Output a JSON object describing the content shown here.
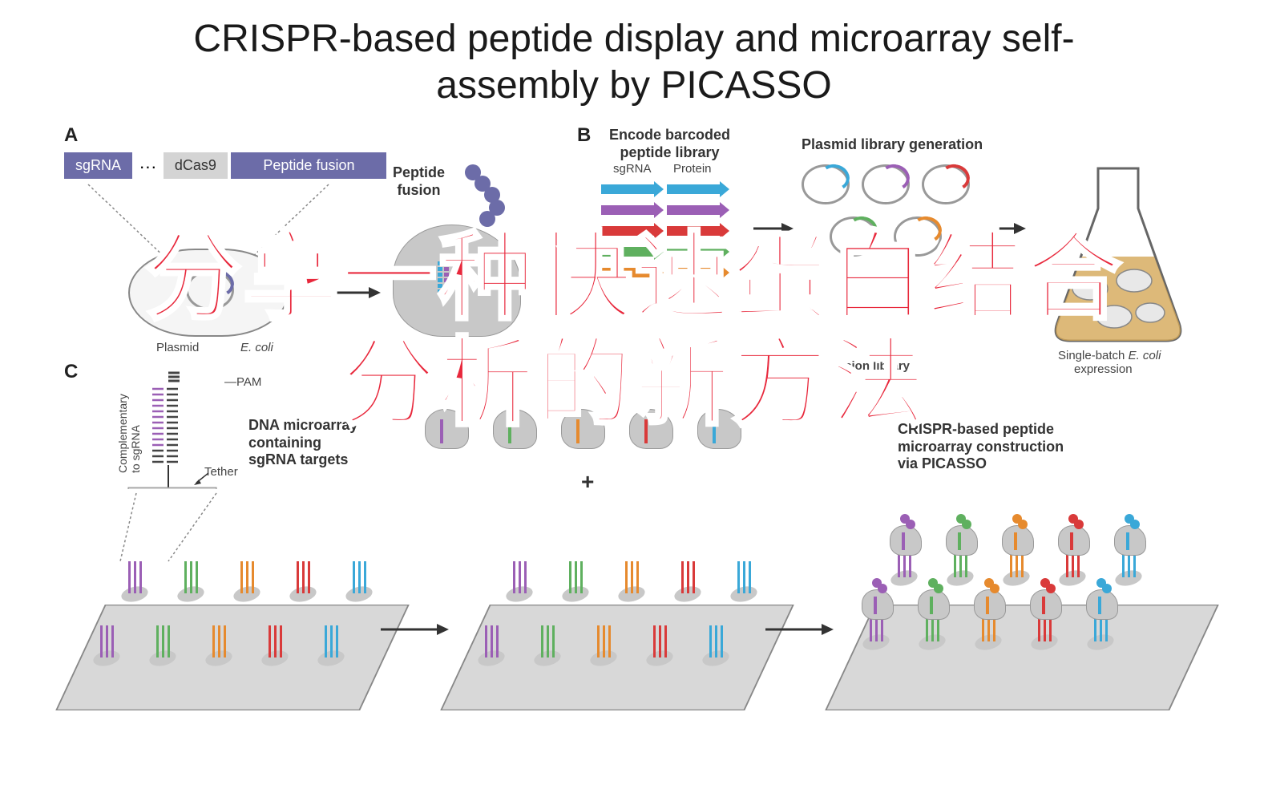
{
  "title_line1": "CRISPR-based peptide display and microarray self-",
  "title_line2": "assembly by PICASSO",
  "panelA": {
    "label": "A",
    "sgRNA": "sgRNA",
    "dots": "···",
    "dCas9": "dCas9",
    "peptideFusion": "Peptide fusion",
    "peptideFusionLabel": "Peptide\nfusion",
    "plasmidLabel": "Plasmid",
    "ecoliLabel": "E. coli"
  },
  "panelB": {
    "label": "B",
    "encodeLabel": "Encode barcoded\npeptide library",
    "sgRNAcol": "sgRNA",
    "proteinCol": "Protein",
    "plasmidGenLabel": "Plasmid library generation",
    "expressionLabel": "Single-batch",
    "ecoliItalic": "E. coli",
    "expressionLabel2": "expression",
    "fusionLibraryLabel": "fusion library",
    "barcodeColors": [
      "#3aa8d8",
      "#9b5fb5",
      "#d93a3a",
      "#5fb05f",
      "#e68a2e"
    ]
  },
  "panelC": {
    "label": "C",
    "complementaryLabel": "Complementary\nto sgRNA",
    "pamLabel": "PAM",
    "tetherLabel": "Tether",
    "microarrayLabel": "DNA microarray\ncontaining\nsgRNA targets",
    "plusSign": "+",
    "constructLabel": "CRISPR-based peptide\nmicroarray construction\nvia PICASSO",
    "probeColors": [
      "#9b5fb5",
      "#5fb05f",
      "#e68a2e",
      "#d93a3a",
      "#3aa8d8"
    ]
  },
  "overlay": {
    "line1": "分享一种快速蛋白结合",
    "line2": "分析的新方法",
    "color": "#e8283c"
  },
  "colors": {
    "purpleBox": "#6c6ca8",
    "grayBox": "#d4d4d4",
    "darkGray": "#888888",
    "flaskFill": "#d4a858",
    "proteinPurple": "#6c6ca8"
  }
}
